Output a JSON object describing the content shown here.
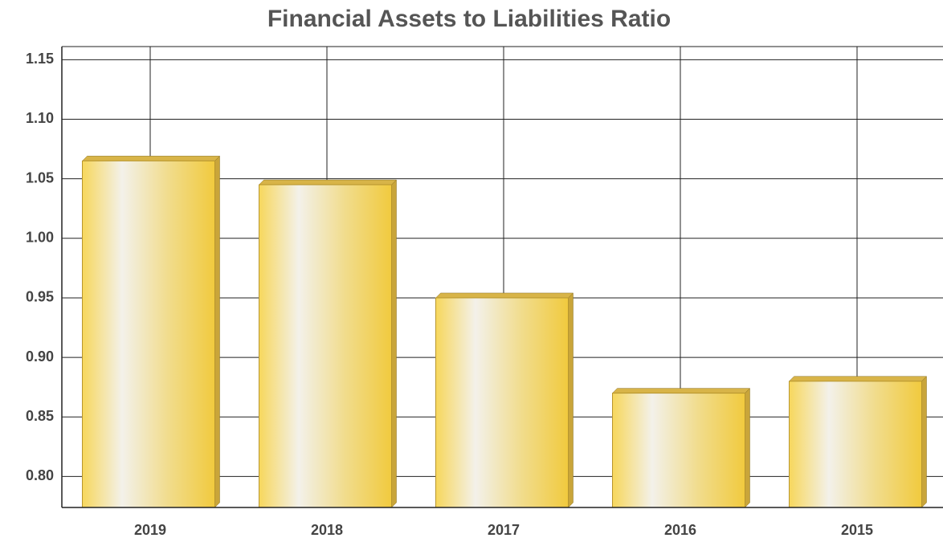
{
  "chart_data": {
    "type": "bar",
    "title": "Financial Assets to Liabilities Ratio",
    "categories": [
      "2019",
      "2018",
      "2017",
      "2016",
      "2015"
    ],
    "values": [
      1.065,
      1.045,
      0.95,
      0.87,
      0.88
    ],
    "color": "#f2c94c",
    "ylim": [
      0.774,
      1.161
    ],
    "yticks": [
      {
        "value": 0.8,
        "label": "0.80"
      },
      0.85,
      {
        "value": 0.9,
        "label": "0.90"
      },
      0.95,
      {
        "value": 1.0,
        "label": "1.00"
      },
      1.05,
      {
        "value": 1.1,
        "label": "1.10"
      },
      1.15
    ],
    "grid": true
  }
}
